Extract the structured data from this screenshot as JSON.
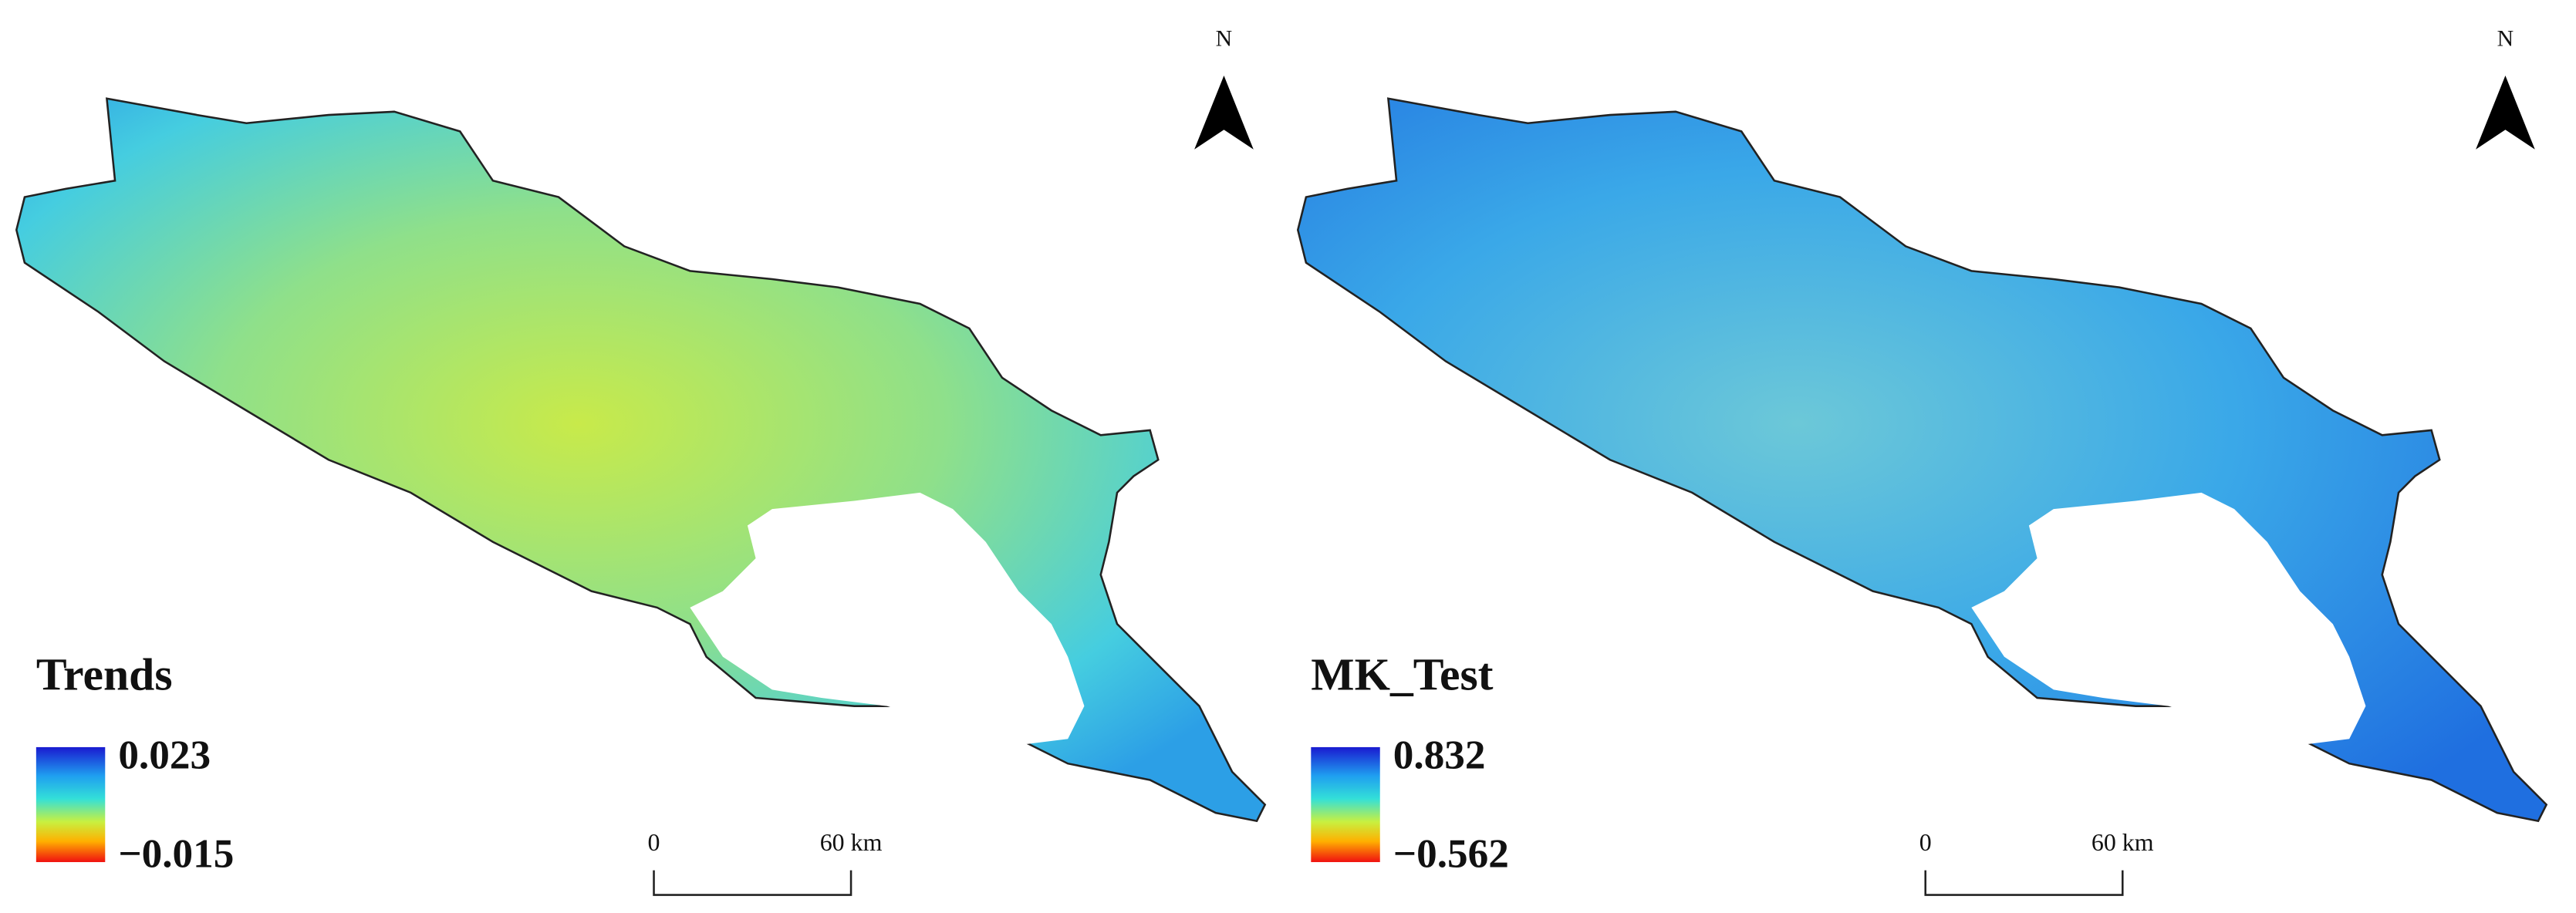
{
  "panels": [
    {
      "north": "N",
      "legend_title": "Trends",
      "max_label": "0.023",
      "min_label": "−0.015",
      "scale_start": "0",
      "scale_end": "60 km"
    },
    {
      "north": "N",
      "legend_title": "MK_Test",
      "max_label": "0.832",
      "min_label": "−0.562",
      "scale_start": "0",
      "scale_end": "60 km"
    }
  ]
}
